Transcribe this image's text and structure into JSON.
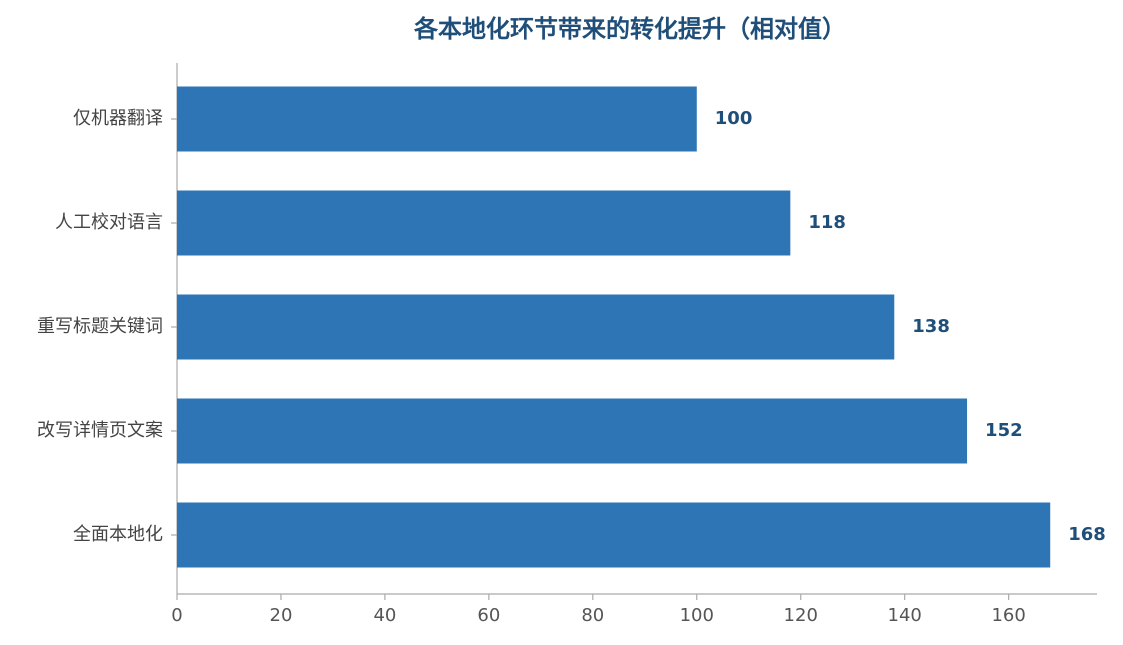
{
  "chart_data": {
    "type": "hbar",
    "title": "各本地化环节带来的转化提升（相对值）",
    "categories": [
      "仅机器翻译",
      "人工校对语言",
      "重写标题关键词",
      "改写详情页文案",
      "全面本地化"
    ],
    "values": [
      100,
      118,
      138,
      152,
      168
    ],
    "color": "#2e75b6",
    "xlim": [
      0,
      177
    ],
    "xticks": [
      0,
      20,
      40,
      60,
      80,
      100,
      120,
      140,
      160
    ],
    "grid": false
  }
}
